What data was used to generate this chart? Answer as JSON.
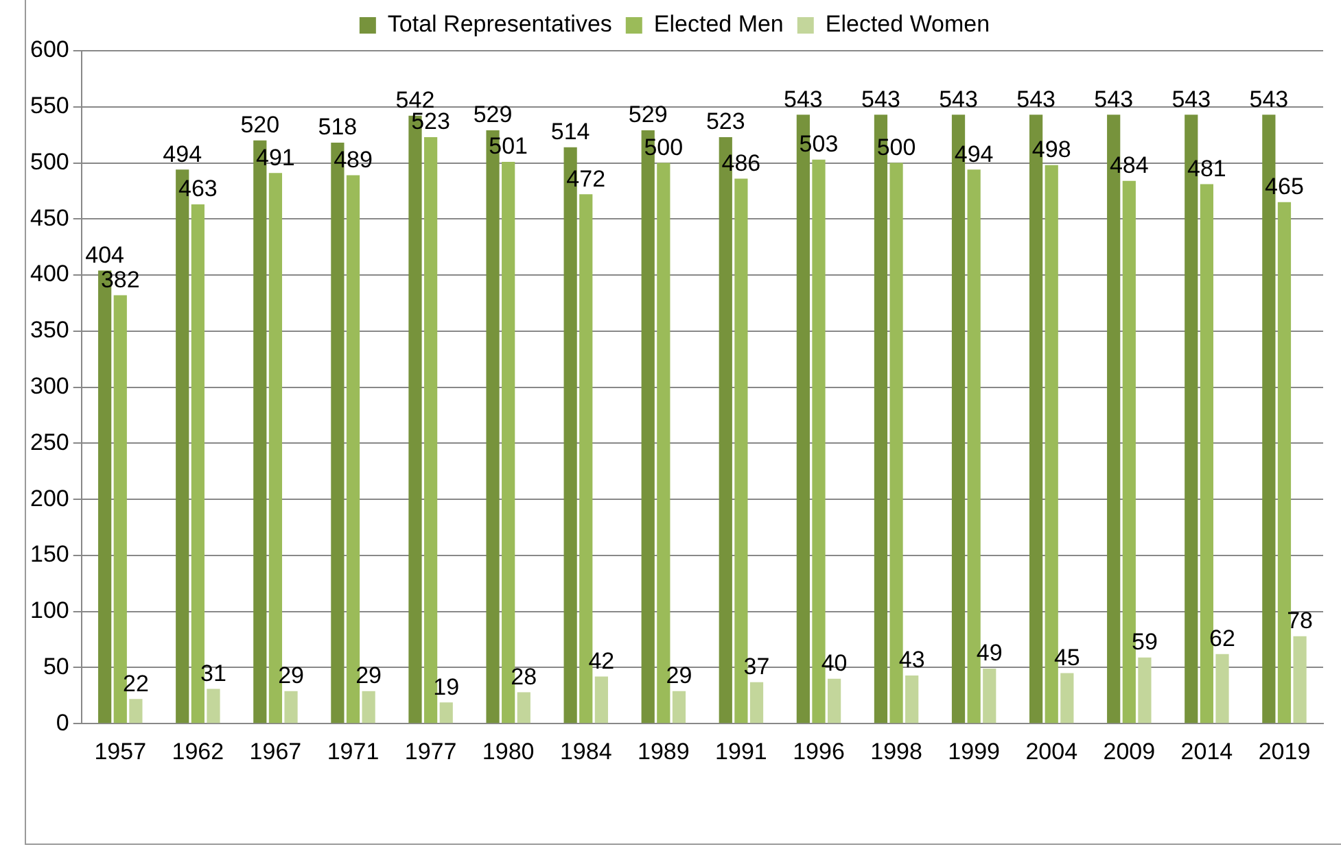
{
  "chart_data": {
    "type": "bar",
    "categories": [
      "1957",
      "1962",
      "1967",
      "1971",
      "1977",
      "1980",
      "1984",
      "1989",
      "1991",
      "1996",
      "1998",
      "1999",
      "2004",
      "2009",
      "2014",
      "2019"
    ],
    "series": [
      {
        "name": "Total Representatives",
        "color": "#77933c",
        "values": [
          404,
          494,
          520,
          518,
          542,
          529,
          514,
          529,
          523,
          543,
          543,
          543,
          543,
          543,
          543,
          543
        ]
      },
      {
        "name": "Elected Men",
        "color": "#9bbb59",
        "values": [
          382,
          463,
          491,
          489,
          523,
          501,
          472,
          500,
          486,
          503,
          500,
          494,
          498,
          484,
          481,
          465
        ]
      },
      {
        "name": "Elected Women",
        "color": "#c3d69b",
        "values": [
          22,
          31,
          29,
          29,
          19,
          28,
          42,
          29,
          37,
          40,
          43,
          49,
          45,
          59,
          62,
          78
        ]
      }
    ],
    "ylim": [
      0,
      600
    ],
    "yticks": [
      0,
      50,
      100,
      150,
      200,
      250,
      300,
      350,
      400,
      450,
      500,
      550,
      600
    ],
    "grid": "y",
    "legend": "top",
    "data_labels": true
  }
}
